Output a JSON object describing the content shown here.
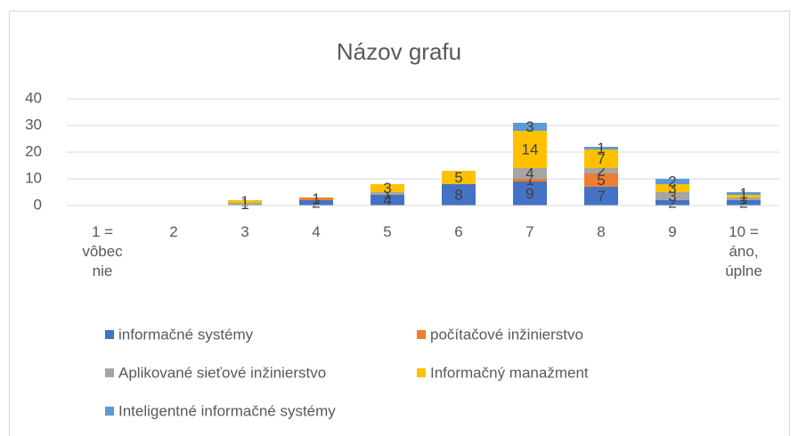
{
  "chart_data": {
    "type": "stacked_bar",
    "title": "Názov grafu",
    "categories": [
      "1 = vôbec nie",
      "2",
      "3",
      "4",
      "5",
      "6",
      "7",
      "8",
      "9",
      "10 = áno, úplne"
    ],
    "series": [
      {
        "name": "informačné systémy",
        "color": "#4472c4",
        "values": [
          null,
          null,
          null,
          2,
          4,
          8,
          9,
          7,
          2,
          2
        ]
      },
      {
        "name": "počítačové inžinierstvo",
        "color": "#ed7d31",
        "values": [
          null,
          null,
          null,
          1,
          null,
          null,
          1,
          5,
          null,
          null
        ]
      },
      {
        "name": "Aplikované sieťové inžinierstvo",
        "color": "#a5a5a5",
        "values": [
          null,
          null,
          1,
          null,
          1,
          null,
          4,
          2,
          3,
          1
        ]
      },
      {
        "name": "Informačný manažment",
        "color": "#ffc000",
        "values": [
          null,
          null,
          1,
          null,
          3,
          5,
          14,
          7,
          3,
          1
        ]
      },
      {
        "name": "Inteligentné informačné systémy",
        "color": "#5b9bd5",
        "values": [
          null,
          null,
          null,
          null,
          null,
          null,
          3,
          1,
          2,
          1
        ]
      }
    ],
    "ylim": [
      0,
      40
    ],
    "yticks": [
      0,
      10,
      20,
      30,
      40
    ],
    "grid": true,
    "legend": "bottom"
  }
}
